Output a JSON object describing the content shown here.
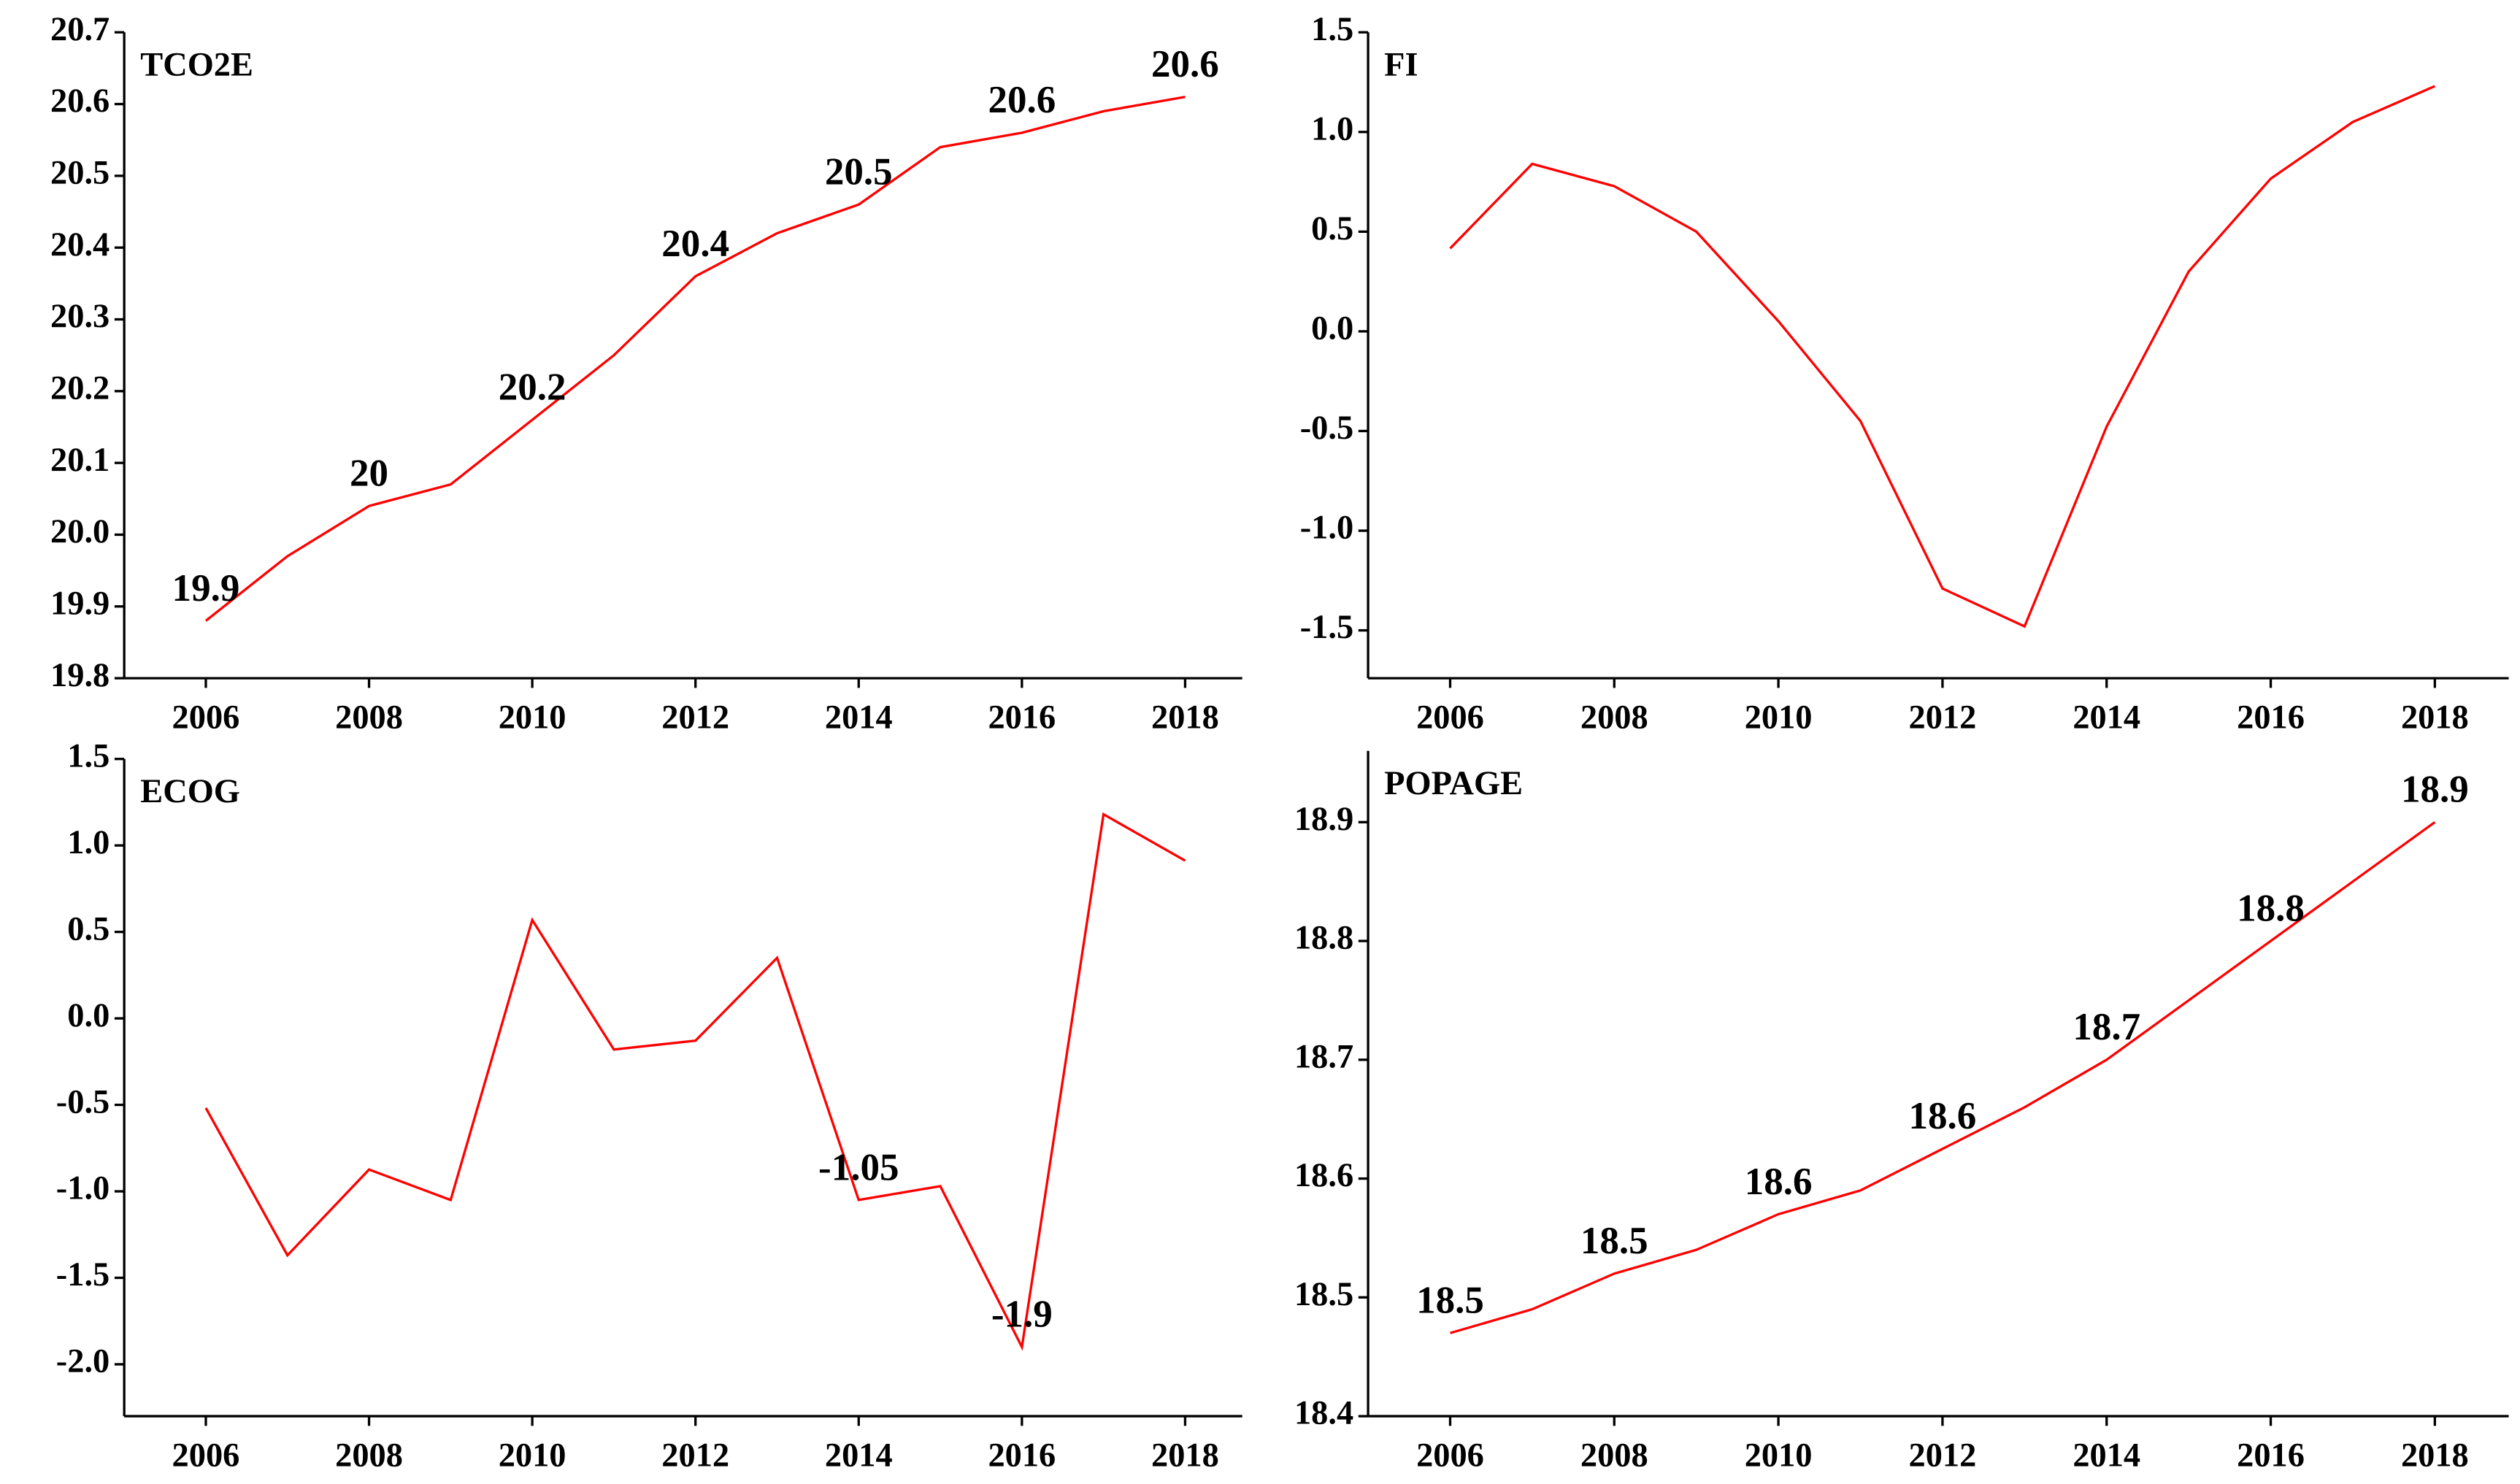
{
  "chart_data": [
    {
      "type": "line",
      "title": "TCO2E",
      "x": [
        2006,
        2007,
        2008,
        2009,
        2010,
        2011,
        2012,
        2013,
        2014,
        2015,
        2016,
        2017,
        2018
      ],
      "series": [
        {
          "color": "#ff0000",
          "values": [
            19.88,
            19.97,
            20.04,
            20.07,
            20.16,
            20.25,
            20.36,
            20.42,
            20.46,
            20.54,
            20.56,
            20.59,
            20.61
          ],
          "value_labels": [
            "19.9",
            null,
            "20",
            null,
            "20.2",
            null,
            "20.4",
            null,
            "20.5",
            null,
            "20.6",
            null,
            "20.6"
          ]
        }
      ],
      "xlim": [
        2005,
        2018.7
      ],
      "xticks": [
        2006,
        2008,
        2010,
        2012,
        2014,
        2016,
        2018
      ],
      "ylim": [
        19.8,
        20.7
      ],
      "yticks": [
        19.8,
        19.9,
        {
          "value": 20,
          "label": "20.0"
        },
        20.1,
        20.2,
        20.3,
        20.4,
        20.5,
        20.6,
        20.7
      ]
    },
    {
      "type": "line",
      "title": "FI",
      "x": [
        2006,
        2007,
        2008,
        2009,
        2010,
        2011,
        2012,
        2013,
        2014,
        2015,
        2016,
        2017,
        2018
      ],
      "series": [
        {
          "color": "#ff0000",
          "values": [
            0.416,
            0.84,
            0.728,
            0.5,
            0.051,
            -0.45,
            -1.29,
            -1.48,
            -0.478,
            0.3,
            0.766,
            1.05,
            1.23
          ],
          "value_labels": [
            null,
            null,
            null,
            null,
            null,
            null,
            null,
            null,
            null,
            null,
            null,
            null,
            null
          ]
        }
      ],
      "xlim": [
        2005,
        2018.9
      ],
      "xticks": [
        2006,
        2008,
        2010,
        2012,
        2014,
        2016,
        2018
      ],
      "ylim": [
        -1.74,
        1.5
      ],
      "yticks": [
        -1.5,
        {
          "value": -1,
          "label": "-1.0"
        },
        -0.5,
        {
          "value": 0,
          "label": "0.0"
        },
        0.5,
        {
          "value": 1,
          "label": "1.0"
        },
        1.5
      ]
    },
    {
      "type": "line",
      "title": "ECOG",
      "x": [
        2006,
        2007,
        2008,
        2009,
        2010,
        2011,
        2012,
        2013,
        2014,
        2015,
        2016,
        2017,
        2018
      ],
      "series": [
        {
          "color": "#ff0000",
          "values": [
            -0.518,
            -1.37,
            -0.874,
            -1.05,
            0.569,
            -0.18,
            -0.129,
            0.35,
            -1.05,
            -0.97,
            -1.9,
            1.18,
            0.912
          ],
          "value_labels": [
            null,
            null,
            null,
            null,
            null,
            null,
            null,
            null,
            "-1.05",
            null,
            "-1.9",
            null,
            null
          ]
        }
      ],
      "xlim": [
        2005,
        2018.7
      ],
      "xticks": [
        2006,
        2008,
        2010,
        2012,
        2014,
        2016,
        2018
      ],
      "ylim": [
        -2.3,
        1.5
      ],
      "yticks": [
        {
          "value": -2,
          "label": "-2.0"
        },
        -1.5,
        {
          "value": -1,
          "label": "-1.0"
        },
        -0.5,
        {
          "value": 0,
          "label": "0.0"
        },
        0.5,
        {
          "value": 1,
          "label": "1.0"
        },
        1.5
      ]
    },
    {
      "type": "line",
      "title": "POPAGE",
      "x": [
        2006,
        2007,
        2008,
        2009,
        2010,
        2011,
        2012,
        2013,
        2014,
        2015,
        2016,
        2017,
        2018
      ],
      "series": [
        {
          "color": "#ff0000",
          "values": [
            18.47,
            18.49,
            18.52,
            18.54,
            18.57,
            18.59,
            18.625,
            18.66,
            18.7,
            18.75,
            18.8,
            18.85,
            18.9
          ],
          "value_labels": [
            "18.5",
            null,
            "18.5",
            null,
            "18.6",
            null,
            "18.6",
            null,
            "18.7",
            null,
            "18.8",
            null,
            "18.9"
          ]
        }
      ],
      "xlim": [
        2005,
        2018.9
      ],
      "xticks": [
        2006,
        2008,
        2010,
        2012,
        2014,
        2016,
        2018
      ],
      "ylim": [
        18.4,
        18.96
      ],
      "yticks": [
        18.4,
        18.5,
        18.6,
        18.7,
        18.8,
        18.9
      ]
    }
  ]
}
